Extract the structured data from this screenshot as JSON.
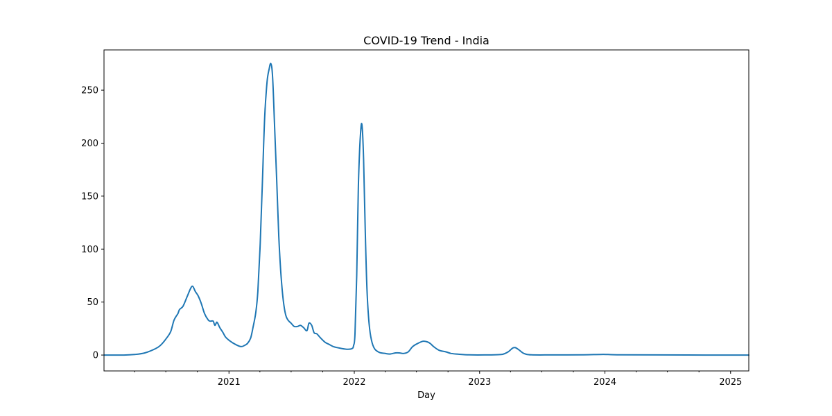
{
  "chart_data": {
    "type": "line",
    "title": "COVID-19 Trend - India",
    "xlabel": "Day",
    "ylabel": "",
    "xlim": [
      "2020-01-03",
      "2025-02-23"
    ],
    "ylim": [
      -15,
      288
    ],
    "x_ticks": [
      {
        "date": "2021-01-01",
        "label": "2021"
      },
      {
        "date": "2022-01-01",
        "label": "2022"
      },
      {
        "date": "2023-01-01",
        "label": "2023"
      },
      {
        "date": "2024-01-01",
        "label": "2024"
      },
      {
        "date": "2025-01-01",
        "label": "2025"
      }
    ],
    "x_minor_ticks": [
      "2020-01-01",
      "2020-04-01",
      "2020-07-01",
      "2020-10-01",
      "2021-04-01",
      "2021-07-01",
      "2021-10-01",
      "2022-04-01",
      "2022-07-01",
      "2022-10-01",
      "2023-04-01",
      "2023-07-01",
      "2023-10-01",
      "2024-04-01",
      "2024-07-01",
      "2024-10-01"
    ],
    "y_ticks": [
      0,
      50,
      100,
      150,
      200,
      250
    ],
    "grid": false,
    "legend": "none",
    "colors": {
      "line": "#1f77b4",
      "axes": "#000000",
      "background": "#ffffff"
    },
    "series": [
      {
        "points": [
          [
            "2020-01-03",
            0
          ],
          [
            "2020-03-01",
            0
          ],
          [
            "2020-04-01",
            0.5
          ],
          [
            "2020-05-01",
            2
          ],
          [
            "2020-06-01",
            6
          ],
          [
            "2020-06-15",
            9
          ],
          [
            "2020-07-01",
            15
          ],
          [
            "2020-07-15",
            22
          ],
          [
            "2020-07-25",
            33
          ],
          [
            "2020-08-05",
            39
          ],
          [
            "2020-08-10",
            43
          ],
          [
            "2020-08-20",
            46
          ],
          [
            "2020-09-01",
            55
          ],
          [
            "2020-09-10",
            62
          ],
          [
            "2020-09-17",
            65
          ],
          [
            "2020-09-25",
            60
          ],
          [
            "2020-10-03",
            56
          ],
          [
            "2020-10-12",
            49
          ],
          [
            "2020-10-22",
            39
          ],
          [
            "2020-11-02",
            33
          ],
          [
            "2020-11-08",
            32
          ],
          [
            "2020-11-16",
            32
          ],
          [
            "2020-11-21",
            28
          ],
          [
            "2020-11-27",
            31
          ],
          [
            "2020-12-05",
            26
          ],
          [
            "2020-12-15",
            21
          ],
          [
            "2020-12-22",
            17
          ],
          [
            "2021-01-05",
            13
          ],
          [
            "2021-01-20",
            10
          ],
          [
            "2021-02-05",
            8
          ],
          [
            "2021-02-15",
            9
          ],
          [
            "2021-02-24",
            11
          ],
          [
            "2021-03-05",
            16
          ],
          [
            "2021-03-12",
            26
          ],
          [
            "2021-03-20",
            40
          ],
          [
            "2021-03-26",
            60
          ],
          [
            "2021-04-02",
            105
          ],
          [
            "2021-04-08",
            160
          ],
          [
            "2021-04-15",
            225
          ],
          [
            "2021-04-22",
            258
          ],
          [
            "2021-04-28",
            270
          ],
          [
            "2021-05-03",
            275
          ],
          [
            "2021-05-08",
            263
          ],
          [
            "2021-05-14",
            215
          ],
          [
            "2021-05-20",
            165
          ],
          [
            "2021-05-26",
            112
          ],
          [
            "2021-06-01",
            78
          ],
          [
            "2021-06-08",
            52
          ],
          [
            "2021-06-15",
            38
          ],
          [
            "2021-06-22",
            33
          ],
          [
            "2021-07-01",
            30
          ],
          [
            "2021-07-10",
            27
          ],
          [
            "2021-07-20",
            27
          ],
          [
            "2021-07-28",
            28
          ],
          [
            "2021-08-06",
            26
          ],
          [
            "2021-08-16",
            23
          ],
          [
            "2021-08-22",
            30
          ],
          [
            "2021-08-30",
            28
          ],
          [
            "2021-09-06",
            21
          ],
          [
            "2021-09-14",
            20
          ],
          [
            "2021-09-25",
            16
          ],
          [
            "2021-10-08",
            12
          ],
          [
            "2021-10-20",
            10
          ],
          [
            "2021-11-01",
            8
          ],
          [
            "2021-11-20",
            6.5
          ],
          [
            "2021-12-10",
            5.5
          ],
          [
            "2021-12-25",
            6
          ],
          [
            "2021-12-30",
            9
          ],
          [
            "2022-01-03",
            20
          ],
          [
            "2022-01-08",
            75
          ],
          [
            "2022-01-13",
            160
          ],
          [
            "2022-01-18",
            203
          ],
          [
            "2022-01-23",
            218
          ],
          [
            "2022-01-28",
            185
          ],
          [
            "2022-02-02",
            115
          ],
          [
            "2022-02-07",
            62
          ],
          [
            "2022-02-13",
            30
          ],
          [
            "2022-02-20",
            14
          ],
          [
            "2022-03-01",
            6
          ],
          [
            "2022-03-15",
            2.5
          ],
          [
            "2022-04-01",
            1.5
          ],
          [
            "2022-04-15",
            1
          ],
          [
            "2022-05-01",
            2
          ],
          [
            "2022-05-12",
            2
          ],
          [
            "2022-05-25",
            1.5
          ],
          [
            "2022-06-07",
            3
          ],
          [
            "2022-06-20",
            8
          ],
          [
            "2022-07-05",
            11
          ],
          [
            "2022-07-20",
            13
          ],
          [
            "2022-08-01",
            12.5
          ],
          [
            "2022-08-10",
            11
          ],
          [
            "2022-08-20",
            8
          ],
          [
            "2022-09-05",
            4.5
          ],
          [
            "2022-09-25",
            3
          ],
          [
            "2022-10-10",
            1.5
          ],
          [
            "2022-11-01",
            0.8
          ],
          [
            "2022-12-01",
            0.2
          ],
          [
            "2023-01-15",
            0.1
          ],
          [
            "2023-02-20",
            0.3
          ],
          [
            "2023-03-10",
            0.8
          ],
          [
            "2023-03-25",
            3
          ],
          [
            "2023-04-07",
            6.5
          ],
          [
            "2023-04-15",
            7
          ],
          [
            "2023-04-25",
            5
          ],
          [
            "2023-05-10",
            1.5
          ],
          [
            "2023-06-01",
            0.2
          ],
          [
            "2023-08-01",
            0.1
          ],
          [
            "2023-11-01",
            0.2
          ],
          [
            "2023-12-20",
            0.6
          ],
          [
            "2024-01-10",
            0.5
          ],
          [
            "2024-02-15",
            0.2
          ],
          [
            "2024-06-01",
            0.1
          ],
          [
            "2024-12-01",
            0
          ],
          [
            "2025-02-23",
            0
          ]
        ]
      }
    ]
  }
}
